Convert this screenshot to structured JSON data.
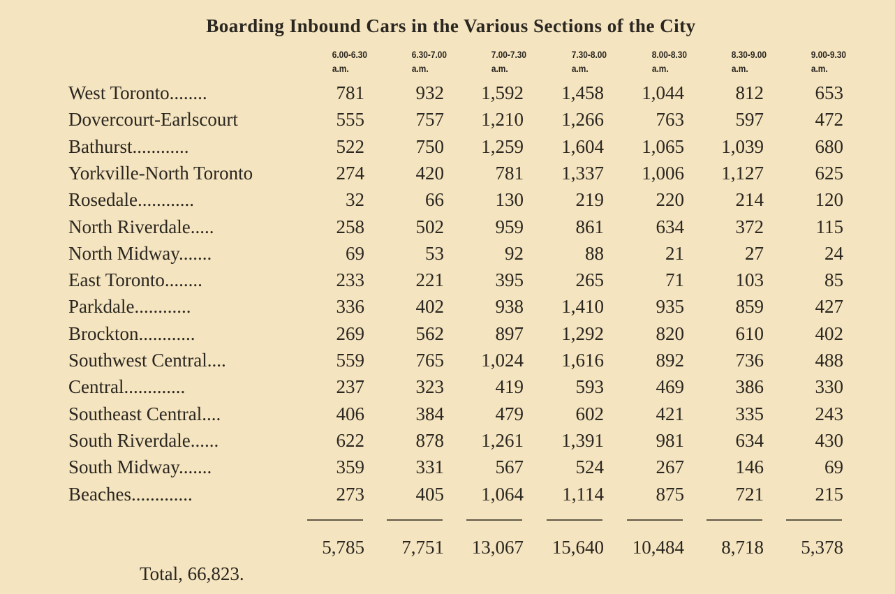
{
  "title": "Boarding Inbound Cars in the Various Sections of the City",
  "columns": [
    {
      "time": "6.00-6.30",
      "suffix": "a.m."
    },
    {
      "time": "6.30-7.00",
      "suffix": "a.m."
    },
    {
      "time": "7.00-7.30",
      "suffix": "a.m."
    },
    {
      "time": "7.30-8.00",
      "suffix": "a.m."
    },
    {
      "time": "8.00-8.30",
      "suffix": "a.m."
    },
    {
      "time": "8.30-9.00",
      "suffix": "a.m."
    },
    {
      "time": "9.00-9.30",
      "suffix": "a.m."
    }
  ],
  "rows": [
    {
      "section": "West Toronto........",
      "values": [
        "781",
        "932",
        "1,592",
        "1,458",
        "1,044",
        "812",
        "653"
      ]
    },
    {
      "section": "Dovercourt-Earlscourt",
      "values": [
        "555",
        "757",
        "1,210",
        "1,266",
        "763",
        "597",
        "472"
      ]
    },
    {
      "section": "Bathurst............",
      "values": [
        "522",
        "750",
        "1,259",
        "1,604",
        "1,065",
        "1,039",
        "680"
      ]
    },
    {
      "section": "Yorkville-North Toronto",
      "values": [
        "274",
        "420",
        "781",
        "1,337",
        "1,006",
        "1,127",
        "625"
      ]
    },
    {
      "section": "Rosedale............",
      "values": [
        "32",
        "66",
        "130",
        "219",
        "220",
        "214",
        "120"
      ]
    },
    {
      "section": "North Riverdale.....",
      "values": [
        "258",
        "502",
        "959",
        "861",
        "634",
        "372",
        "115"
      ]
    },
    {
      "section": "North Midway.......",
      "values": [
        "69",
        "53",
        "92",
        "88",
        "21",
        "27",
        "24"
      ]
    },
    {
      "section": "East Toronto........",
      "values": [
        "233",
        "221",
        "395",
        "265",
        "71",
        "103",
        "85"
      ]
    },
    {
      "section": "Parkdale............",
      "values": [
        "336",
        "402",
        "938",
        "1,410",
        "935",
        "859",
        "427"
      ]
    },
    {
      "section": "Brockton............",
      "values": [
        "269",
        "562",
        "897",
        "1,292",
        "820",
        "610",
        "402"
      ]
    },
    {
      "section": "Southwest Central....",
      "values": [
        "559",
        "765",
        "1,024",
        "1,616",
        "892",
        "736",
        "488"
      ]
    },
    {
      "section": "Central.............",
      "values": [
        "237",
        "323",
        "419",
        "593",
        "469",
        "386",
        "330"
      ]
    },
    {
      "section": "Southeast Central....",
      "values": [
        "406",
        "384",
        "479",
        "602",
        "421",
        "335",
        "243"
      ]
    },
    {
      "section": "South Riverdale......",
      "values": [
        "622",
        "878",
        "1,261",
        "1,391",
        "981",
        "634",
        "430"
      ]
    },
    {
      "section": "South Midway.......",
      "values": [
        "359",
        "331",
        "567",
        "524",
        "267",
        "146",
        "69"
      ]
    },
    {
      "section": "Beaches.............",
      "values": [
        "273",
        "405",
        "1,064",
        "1,114",
        "875",
        "721",
        "215"
      ]
    }
  ],
  "column_totals": [
    "5,785",
    "7,751",
    "13,067",
    "15,640",
    "10,484",
    "8,718",
    "5,378"
  ],
  "grand_total": "Total, 66,823."
}
